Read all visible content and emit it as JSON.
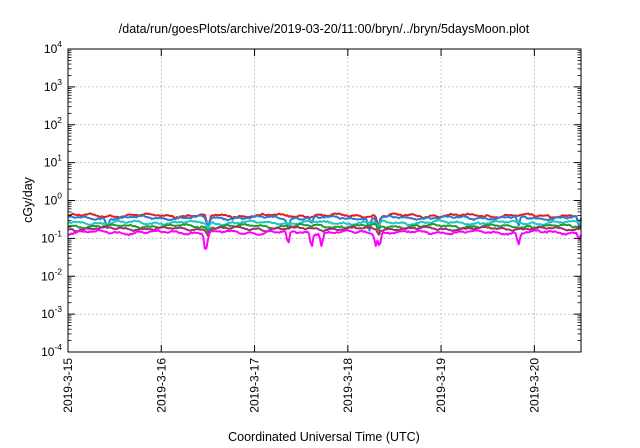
{
  "chart_data": {
    "type": "line",
    "title": "/data/run/goesPlots/archive/2019-03-20/11:00/bryn/../bryn/5daysMoon.plot",
    "xlabel": "Coordinated Universal Time (UTC)",
    "ylabel": "cGy/day",
    "y_scale": "log",
    "ylim": [
      0.0001,
      10000
    ],
    "y_ticks": [
      {
        "value": 0.0001,
        "base": "10",
        "exp": "-4"
      },
      {
        "value": 0.001,
        "base": "10",
        "exp": "-3"
      },
      {
        "value": 0.01,
        "base": "10",
        "exp": "-2"
      },
      {
        "value": 0.1,
        "base": "10",
        "exp": "-1"
      },
      {
        "value": 1,
        "base": "10",
        "exp": "0"
      },
      {
        "value": 10,
        "base": "10",
        "exp": "1"
      },
      {
        "value": 100,
        "base": "10",
        "exp": "2"
      },
      {
        "value": 1000,
        "base": "10",
        "exp": "3"
      },
      {
        "value": 10000,
        "base": "10",
        "exp": "4"
      }
    ],
    "x_start": "2019-03-15",
    "xlim_days": [
      0,
      5.5
    ],
    "x_ticks": [
      "2019-3-15",
      "2019-3-16",
      "2019-3-17",
      "2019-3-18",
      "2019-3-19",
      "2019-3-20"
    ],
    "grid": true,
    "legend": "none",
    "series": [
      {
        "color": "#e0201c",
        "level": 0.4,
        "dips": [
          [
            1.5,
            0.33
          ],
          [
            3.33,
            0.4
          ],
          [
            5.48,
            0.45
          ]
        ]
      },
      {
        "color": "#2a7bd8",
        "level": 0.35,
        "dips": [
          [
            0.42,
            0.55
          ],
          [
            1.5,
            0.5
          ],
          [
            2.36,
            0.55
          ],
          [
            2.61,
            0.65
          ],
          [
            3.23,
            0.45
          ],
          [
            3.32,
            0.5
          ],
          [
            4.83,
            0.55
          ],
          [
            5.48,
            0.55
          ]
        ]
      },
      {
        "color": "#1ec8c0",
        "level": 0.26,
        "dips": [
          [
            1.5,
            0.7
          ],
          [
            3.33,
            0.7
          ]
        ]
      },
      {
        "color": "#1e9e2e",
        "level": 0.21,
        "dips": [
          [
            1.5,
            0.75
          ],
          [
            3.33,
            0.75
          ]
        ]
      },
      {
        "color": "#a0306e",
        "level": 0.18,
        "dips": [
          [
            1.5,
            0.75
          ],
          [
            3.33,
            0.75
          ]
        ]
      },
      {
        "color": "#ff00ff",
        "level": 0.145,
        "dips": [
          [
            1.47,
            0.45
          ],
          [
            1.49,
            0.55
          ],
          [
            2.36,
            0.45
          ],
          [
            2.61,
            0.4
          ],
          [
            2.72,
            0.45
          ],
          [
            3.3,
            0.5
          ],
          [
            3.34,
            0.45
          ],
          [
            4.83,
            0.45
          ],
          [
            5.48,
            0.7
          ]
        ]
      }
    ]
  }
}
